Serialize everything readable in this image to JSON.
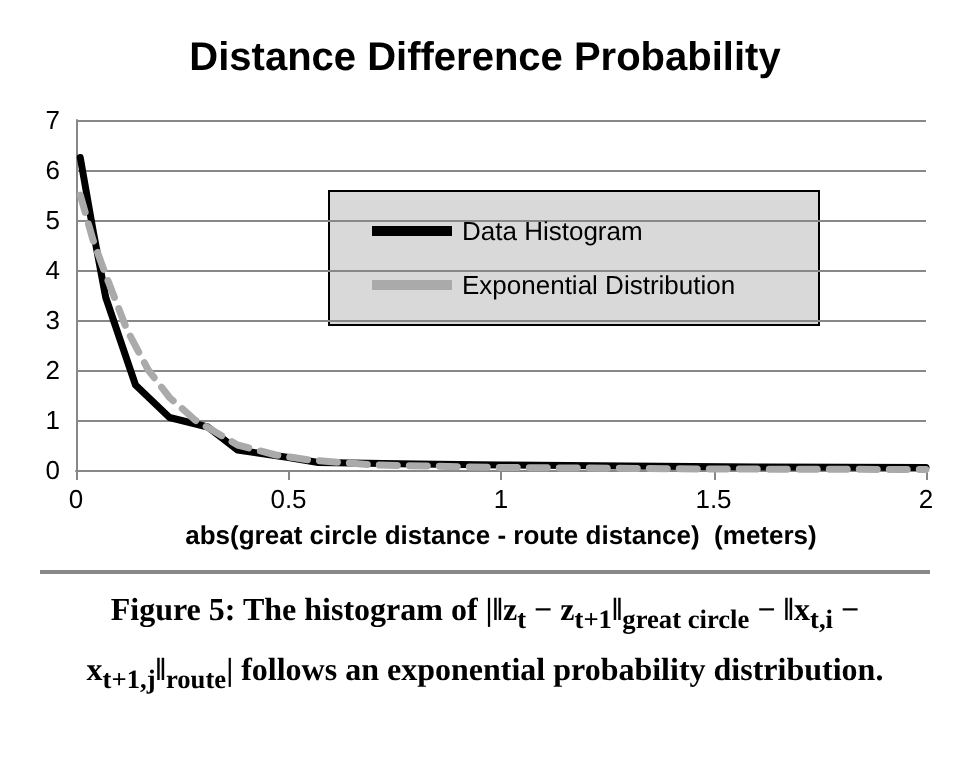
{
  "chart_data": {
    "type": "line",
    "title": "Distance Difference Probability",
    "xlabel": "abs(great circle distance - route distance)  (meters)",
    "series": [
      {
        "name": "Data Histogram",
        "color": "#000000",
        "line_style": "solid",
        "x": [
          0.01,
          0.04,
          0.07,
          0.14,
          0.22,
          0.31,
          0.38,
          0.5,
          0.57,
          0.8,
          1.0,
          1.3,
          1.6,
          2.0
        ],
        "values": [
          6.25,
          4.8,
          3.45,
          1.7,
          1.05,
          0.86,
          0.4,
          0.25,
          0.15,
          0.12,
          0.1,
          0.08,
          0.06,
          0.05
        ]
      },
      {
        "name": "Exponential Distribution",
        "color": "#aaaaaa",
        "line_style": "dashed",
        "x": [
          0.01,
          0.04,
          0.07,
          0.12,
          0.17,
          0.22,
          0.28,
          0.38,
          0.47,
          0.55,
          0.7,
          1.0,
          1.5,
          2.0
        ],
        "values": [
          5.5,
          4.6,
          3.9,
          2.8,
          2.0,
          1.45,
          1.0,
          0.5,
          0.3,
          0.2,
          0.1,
          0.05,
          0.02,
          0.01
        ]
      }
    ],
    "xlim": [
      0,
      2
    ],
    "xticks": [
      0,
      0.5,
      1,
      1.5,
      2
    ],
    "ylim": [
      0,
      7
    ],
    "yticks": [
      0,
      1,
      2,
      3,
      4,
      5,
      6,
      7
    ],
    "grid": "y",
    "legend": "top right",
    "marker": "none",
    "annotations": [
      "Figure 5: The histogram of |‖z$_{t}$ − z$_{t+1}$‖$_{great circle}$ − ‖x$_{t,i}$ − x$_{t+1,j}$‖$_{route}$| follows an exponential probability distribution."
    ]
  }
}
